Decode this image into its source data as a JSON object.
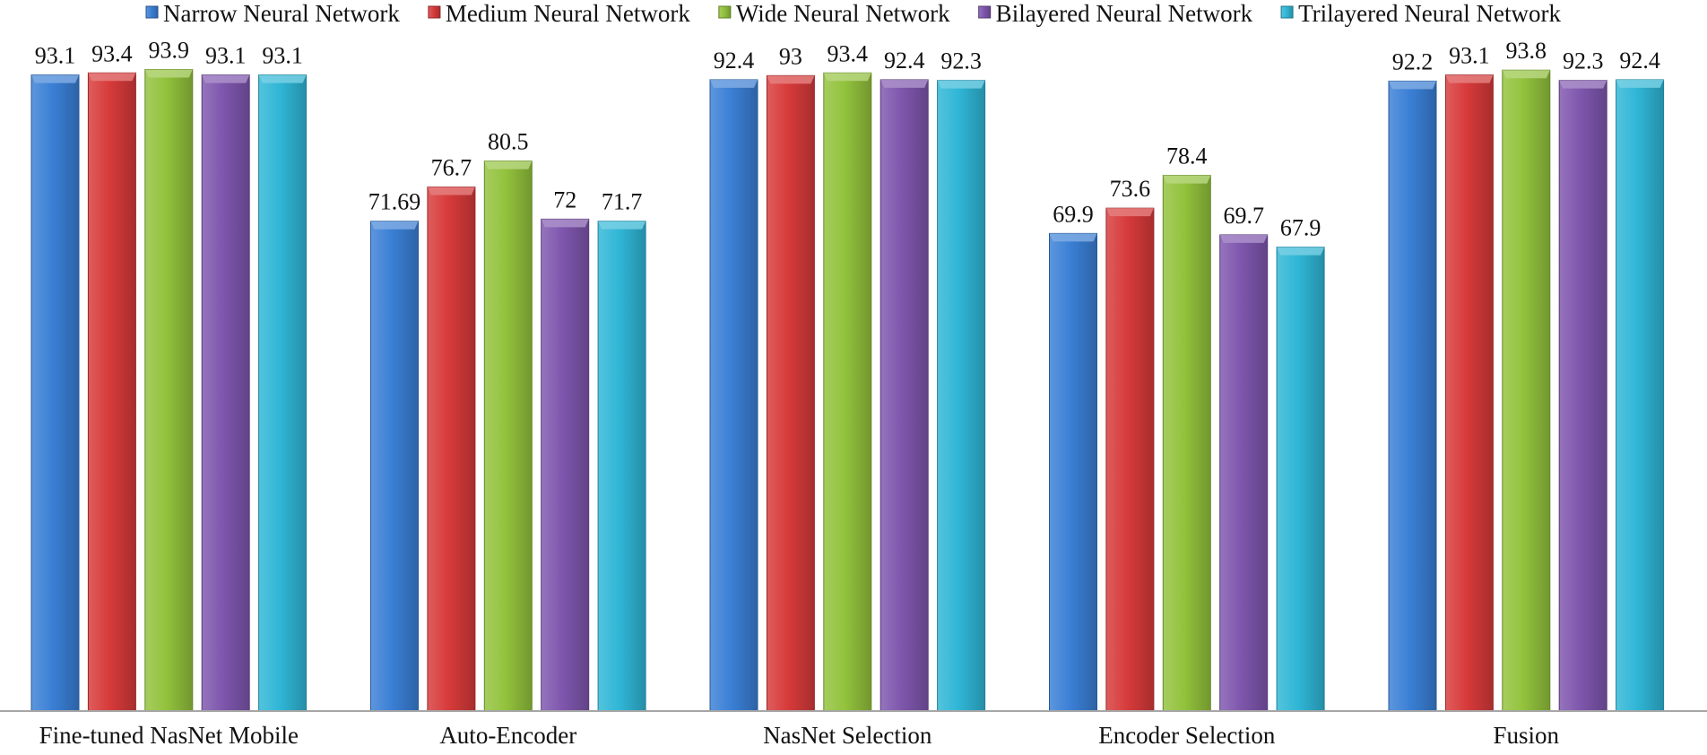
{
  "chart_data": {
    "type": "bar",
    "title": "",
    "xlabel": "",
    "ylabel": "",
    "ylim": [
      0,
      100
    ],
    "grid": false,
    "legend_position": "top",
    "categories": [
      "Fine-tuned NasNet Mobile",
      "Auto-Encoder",
      "NasNet Selection",
      "Encoder Selection",
      "Fusion"
    ],
    "series": [
      {
        "name": "Narrow Neural Network",
        "color": "#3a7fd5",
        "values": [
          93.1,
          71.69,
          92.4,
          69.9,
          92.2
        ],
        "labels": [
          "93.1",
          "71.69",
          "92.4",
          "69.9",
          "92.2"
        ]
      },
      {
        "name": "Medium Neural Network",
        "color": "#d73a3a",
        "values": [
          93.4,
          76.7,
          93,
          73.6,
          93.1
        ],
        "labels": [
          "93.4",
          "76.7",
          "93",
          "73.6",
          "93.1"
        ]
      },
      {
        "name": "Wide Neural Network",
        "color": "#92c23c",
        "values": [
          93.9,
          80.5,
          93.4,
          78.4,
          93.8
        ],
        "labels": [
          "93.9",
          "80.5",
          "93.4",
          "78.4",
          "93.8"
        ]
      },
      {
        "name": "Bilayered Neural Network",
        "color": "#7e56ad",
        "values": [
          93.1,
          72,
          92.4,
          69.7,
          92.3
        ],
        "labels": [
          "93.1",
          "72",
          "92.4",
          "69.7",
          "92.3"
        ]
      },
      {
        "name": "Trilayered Neural Network",
        "color": "#2fb6d6",
        "values": [
          93.1,
          71.7,
          92.3,
          67.9,
          92.4
        ],
        "labels": [
          "93.1",
          "71.7",
          "92.3",
          "67.9",
          "92.4"
        ]
      }
    ]
  }
}
